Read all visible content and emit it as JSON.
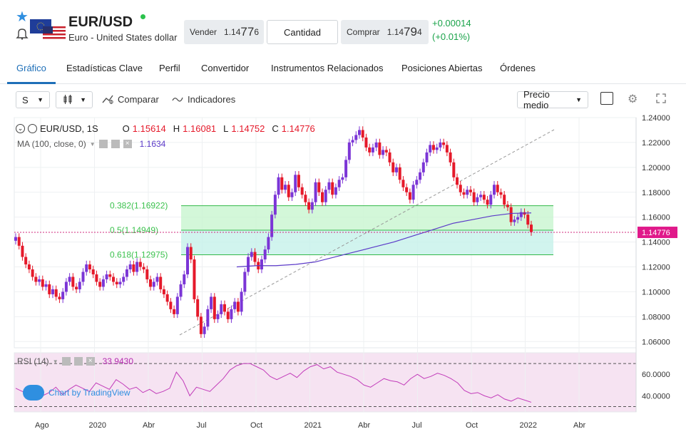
{
  "header": {
    "pair": "EUR/USD",
    "subtitle": "Euro - United States dollar",
    "sell_label": "Vender",
    "sell_price_small": "1.14",
    "sell_price_big": "77",
    "sell_price_tail": "6",
    "quantity_label": "Cantidad",
    "buy_label": "Comprar",
    "buy_price_small": "1.14",
    "buy_price_big": "79",
    "buy_price_tail": "4",
    "change_abs": "+0.00014",
    "change_pct": "(+0.01%)",
    "colors": {
      "up": "#1aa34a",
      "accent": "#1e6fb8"
    }
  },
  "tabs": [
    {
      "label": "Gráfico",
      "active": true
    },
    {
      "label": "Estadísticas Clave"
    },
    {
      "label": "Perfil"
    },
    {
      "label": "Convertidor"
    },
    {
      "label": "Instrumentos Relacionados"
    },
    {
      "label": "Posiciones Abiertas"
    },
    {
      "label": "Órdenes"
    }
  ],
  "toolbar": {
    "interval": "S",
    "compare_label": "Comparar",
    "indicators_label": "Indicadores",
    "price_mode": "Precio medio"
  },
  "chart_data": {
    "type": "candlestick",
    "symbol_label": "EUR/USD, 1S",
    "ohlc": {
      "o_label": "O",
      "o": "1.15614",
      "h_label": "H",
      "h": "1.16081",
      "l_label": "L",
      "l": "1.14752",
      "c_label": "C",
      "c": "1.14776"
    },
    "ma_label": "MA (100, close, 0)",
    "ma_value": "1.1634",
    "last_price": "1.14776",
    "y_ticks": [
      "1.24000",
      "1.22000",
      "1.20000",
      "1.18000",
      "1.16000",
      "1.14000",
      "1.12000",
      "1.10000",
      "1.08000",
      "1.06000"
    ],
    "ylim": [
      1.055,
      1.24
    ],
    "x_ticks": [
      "Ago",
      "2020",
      "Abr",
      "Jul",
      "Oct",
      "2021",
      "Abr",
      "Jul",
      "Oct",
      "2022",
      "Abr"
    ],
    "fib_levels": [
      {
        "label": "0.382(1.16922)",
        "value": 1.16922
      },
      {
        "label": "0.5(1.14949)",
        "value": 1.14949
      },
      {
        "label": "0.618(1.12975)",
        "value": 1.12975
      }
    ],
    "closes": [
      1.144,
      1.137,
      1.128,
      1.122,
      1.118,
      1.112,
      1.108,
      1.11,
      1.104,
      1.106,
      1.098,
      1.102,
      1.096,
      1.094,
      1.1,
      1.108,
      1.112,
      1.104,
      1.102,
      1.108,
      1.116,
      1.122,
      1.118,
      1.114,
      1.108,
      1.104,
      1.11,
      1.114,
      1.112,
      1.108,
      1.106,
      1.108,
      1.112,
      1.118,
      1.122,
      1.116,
      1.124,
      1.12,
      1.118,
      1.11,
      1.104,
      1.108,
      1.112,
      1.102,
      1.098,
      1.092,
      1.086,
      1.082,
      1.096,
      1.106,
      1.114,
      1.136,
      1.126,
      1.094,
      1.08,
      1.066,
      1.072,
      1.086,
      1.096,
      1.078,
      1.082,
      1.09,
      1.084,
      1.078,
      1.086,
      1.092,
      1.084,
      1.1,
      1.116,
      1.128,
      1.132,
      1.124,
      1.118,
      1.126,
      1.134,
      1.144,
      1.162,
      1.178,
      1.192,
      1.182,
      1.186,
      1.176,
      1.18,
      1.194,
      1.184,
      1.178,
      1.172,
      1.166,
      1.172,
      1.188,
      1.18,
      1.172,
      1.182,
      1.188,
      1.178,
      1.184,
      1.19,
      1.192,
      1.206,
      1.22,
      1.222,
      1.226,
      1.23,
      1.224,
      1.216,
      1.212,
      1.216,
      1.22,
      1.21,
      1.214,
      1.212,
      1.204,
      1.196,
      1.2,
      1.19,
      1.184,
      1.18,
      1.174,
      1.186,
      1.19,
      1.196,
      1.204,
      1.212,
      1.218,
      1.214,
      1.216,
      1.22,
      1.218,
      1.212,
      1.204,
      1.192,
      1.186,
      1.18,
      1.178,
      1.182,
      1.18,
      1.172,
      1.176,
      1.178,
      1.174,
      1.17,
      1.178,
      1.186,
      1.18,
      1.178,
      1.17,
      1.168,
      1.156,
      1.158,
      1.16,
      1.164,
      1.162,
      1.154,
      1.148
    ],
    "ma_series": [
      1.12,
      1.121,
      1.121,
      1.122,
      1.124,
      1.128,
      1.132,
      1.136,
      1.14,
      1.145,
      1.15,
      1.155,
      1.158,
      1.161,
      1.163,
      1.1634
    ],
    "rsi_label": "RSI (14)",
    "rsi_value": "33.9430",
    "rsi_ticks": [
      "60.0000",
      "40.0000"
    ],
    "rsi_series": [
      47,
      44,
      42,
      45,
      40,
      43,
      48,
      41,
      46,
      50,
      47,
      44,
      52,
      49,
      46,
      55,
      51,
      46,
      48,
      43,
      46,
      42,
      44,
      47,
      62,
      54,
      40,
      48,
      46,
      44,
      50,
      56,
      64,
      68,
      70,
      70,
      67,
      64,
      58,
      55,
      58,
      61,
      57,
      63,
      67,
      69,
      65,
      67,
      62,
      60,
      58,
      55,
      50,
      48,
      52,
      56,
      54,
      53,
      50,
      56,
      60,
      56,
      58,
      61,
      59,
      56,
      52,
      45,
      42,
      43,
      40,
      38,
      41,
      37,
      35,
      38,
      36,
      34
    ]
  },
  "branding": {
    "label": "Chart by TradingView"
  }
}
